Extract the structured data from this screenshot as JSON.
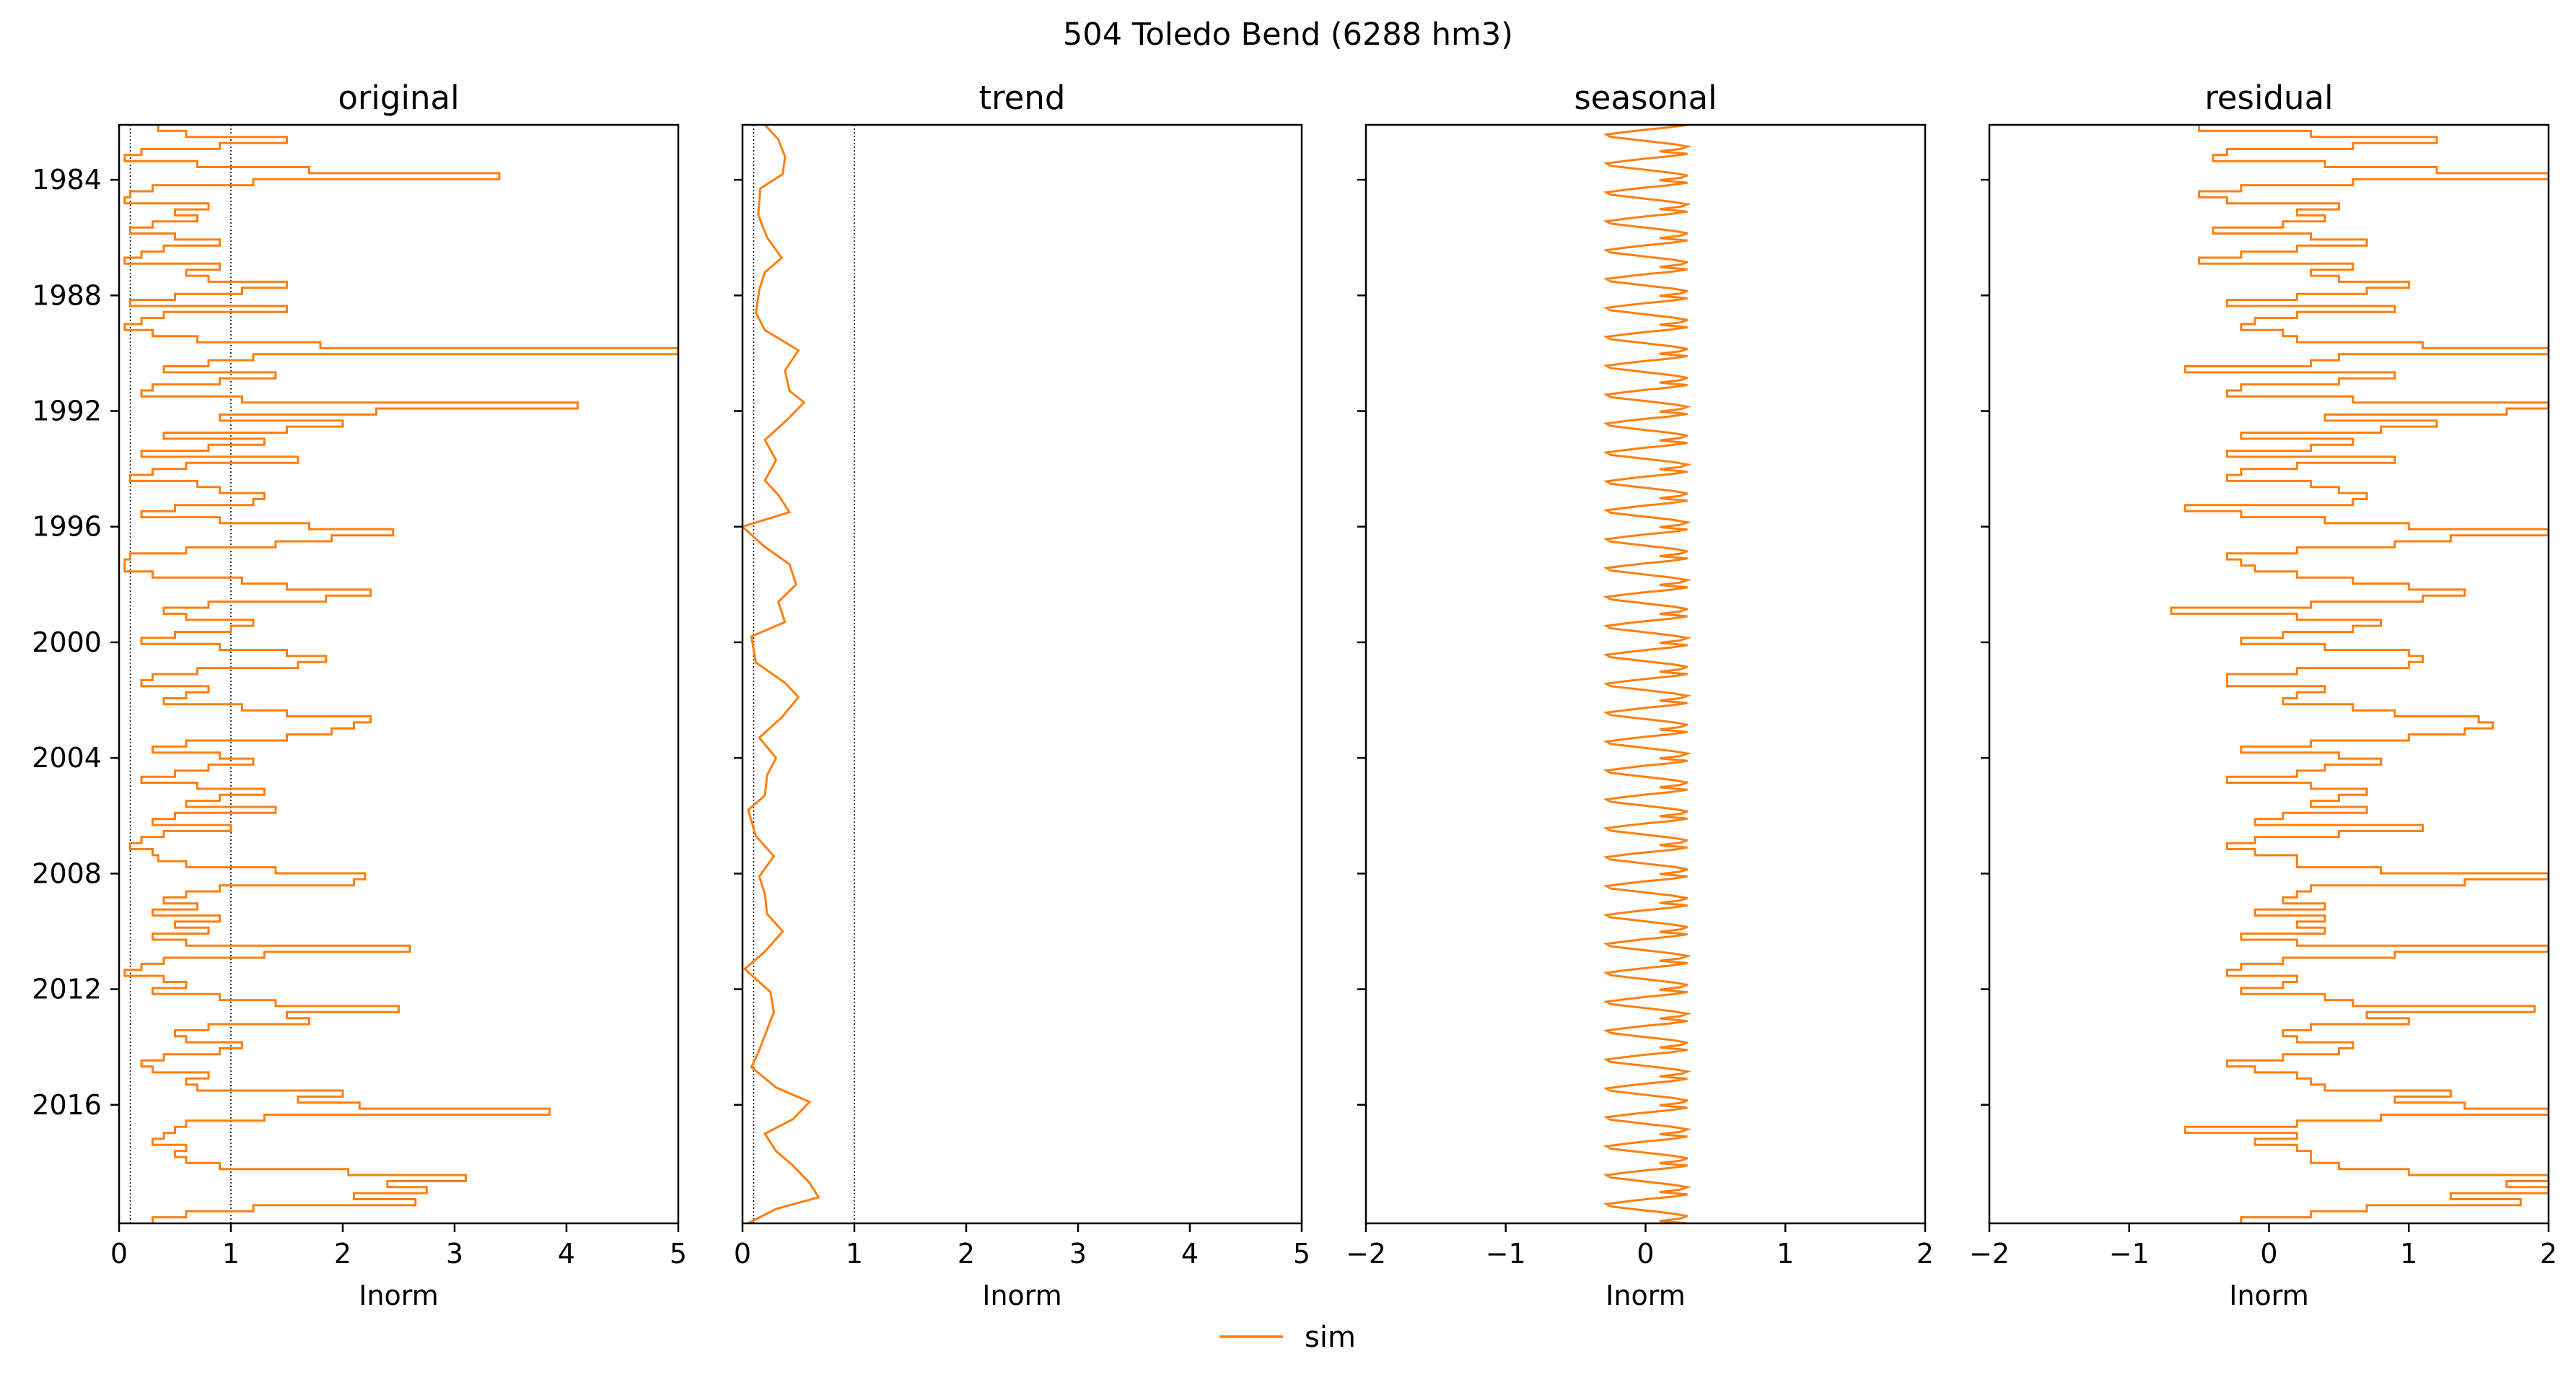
{
  "figure": {
    "suptitle": "504  Toledo Bend (6288 hm3)"
  },
  "colors": {
    "series": "#ff7f0e",
    "axes": "#000000",
    "reference_lines": "#000000",
    "background": "#ffffff"
  },
  "legend": {
    "placement": "bottom-center",
    "entries": [
      {
        "label": "sim",
        "color": "#ff7f0e"
      }
    ]
  },
  "chart_data": [
    {
      "type": "line",
      "orientation": "vertical",
      "title": "original",
      "xlabel": "Inorm",
      "ylabel": "",
      "xlim": [
        0,
        5
      ],
      "xticks": [
        0,
        1,
        2,
        3,
        4,
        5
      ],
      "ylim": [
        1982.1,
        2020.1
      ],
      "yticks": [
        1984,
        1988,
        1992,
        1996,
        2000,
        2004,
        2008,
        2012,
        2016
      ],
      "ytick_labels_shown": true,
      "reference_lines_x": [
        0.1,
        1
      ],
      "grid": false,
      "series": [
        {
          "name": "sim",
          "kind": "monthly",
          "year_start": 1982.1,
          "year_end": 2020.1,
          "values": [
            0.35,
            0.6,
            1.5,
            0.9,
            0.2,
            0.05,
            0.7,
            1.7,
            3.4,
            1.2,
            0.3,
            0.1,
            0.05,
            0.8,
            0.5,
            0.7,
            0.3,
            0.1,
            0.5,
            0.9,
            0.4,
            0.2,
            0.05,
            0.9,
            0.6,
            0.8,
            1.5,
            1.1,
            0.5,
            0.1,
            1.5,
            0.4,
            0.2,
            0.05,
            0.3,
            0.7,
            1.8,
            5.0,
            1.2,
            0.8,
            0.4,
            1.4,
            0.9,
            0.3,
            0.2,
            1.1,
            4.1,
            2.3,
            0.9,
            2.0,
            1.5,
            0.4,
            1.3,
            0.8,
            0.2,
            1.6,
            0.6,
            0.3,
            0.1,
            0.7,
            0.9,
            1.3,
            1.2,
            0.5,
            0.2,
            0.9,
            1.7,
            2.45,
            1.9,
            1.4,
            0.6,
            0.1,
            0.05,
            0.05,
            0.3,
            1.1,
            1.5,
            2.25,
            1.85,
            0.8,
            0.4,
            0.6,
            1.2,
            1.0,
            0.5,
            0.2,
            0.9,
            1.5,
            1.85,
            1.6,
            0.7,
            0.3,
            0.2,
            0.8,
            0.6,
            0.4,
            1.1,
            1.5,
            2.25,
            2.1,
            1.9,
            1.5,
            0.6,
            0.3,
            0.9,
            1.2,
            0.8,
            0.5,
            0.2,
            0.7,
            1.3,
            0.9,
            0.6,
            1.4,
            0.5,
            0.3,
            1.0,
            0.4,
            0.2,
            0.1,
            0.3,
            0.35,
            0.6,
            1.4,
            2.2,
            2.1,
            0.9,
            0.6,
            0.4,
            0.7,
            0.3,
            0.9,
            0.5,
            0.8,
            0.3,
            0.6,
            2.6,
            1.3,
            0.4,
            0.2,
            0.05,
            0.4,
            0.6,
            0.3,
            0.9,
            1.4,
            2.5,
            1.5,
            1.7,
            0.8,
            0.5,
            0.6,
            1.1,
            0.9,
            0.4,
            0.2,
            0.3,
            0.8,
            0.6,
            0.7,
            2.0,
            1.6,
            2.15,
            3.85,
            1.3,
            0.6,
            0.5,
            0.4,
            0.3,
            0.6,
            0.5,
            0.6,
            0.9,
            2.05,
            3.1,
            2.4,
            2.75,
            2.1,
            2.65,
            1.2,
            0.6,
            0.3
          ]
        }
      ]
    },
    {
      "type": "line",
      "orientation": "vertical",
      "title": "trend",
      "xlabel": "Inorm",
      "ylabel": "",
      "xlim": [
        0,
        5
      ],
      "xticks": [
        0,
        1,
        2,
        3,
        4,
        5
      ],
      "ylim": [
        1982.1,
        2020.1
      ],
      "yticks": [
        1984,
        1988,
        1992,
        1996,
        2000,
        2004,
        2008,
        2012,
        2016
      ],
      "ytick_labels_shown": false,
      "reference_lines_x": [
        0.1,
        1
      ],
      "grid": false,
      "series": [
        {
          "name": "sim",
          "kind": "smooth",
          "points": [
            [
              1982.1,
              0.2
            ],
            [
              1982.6,
              0.32
            ],
            [
              1983.2,
              0.38
            ],
            [
              1983.8,
              0.36
            ],
            [
              1984.3,
              0.16
            ],
            [
              1985.2,
              0.14
            ],
            [
              1986.0,
              0.22
            ],
            [
              1986.7,
              0.35
            ],
            [
              1987.2,
              0.2
            ],
            [
              1987.8,
              0.15
            ],
            [
              1988.6,
              0.12
            ],
            [
              1989.2,
              0.2
            ],
            [
              1989.9,
              0.5
            ],
            [
              1990.6,
              0.38
            ],
            [
              1991.3,
              0.42
            ],
            [
              1991.7,
              0.55
            ],
            [
              1992.3,
              0.4
            ],
            [
              1993.0,
              0.2
            ],
            [
              1993.7,
              0.3
            ],
            [
              1994.4,
              0.2
            ],
            [
              1994.9,
              0.32
            ],
            [
              1995.5,
              0.42
            ],
            [
              1996.0,
              0.0
            ],
            [
              1996.7,
              0.2
            ],
            [
              1997.3,
              0.42
            ],
            [
              1998.0,
              0.48
            ],
            [
              1998.6,
              0.32
            ],
            [
              1999.3,
              0.38
            ],
            [
              1999.8,
              0.08
            ],
            [
              2000.7,
              0.12
            ],
            [
              2001.4,
              0.38
            ],
            [
              2001.9,
              0.5
            ],
            [
              2002.6,
              0.35
            ],
            [
              2003.3,
              0.15
            ],
            [
              2004.0,
              0.3
            ],
            [
              2004.6,
              0.22
            ],
            [
              2005.3,
              0.2
            ],
            [
              2005.8,
              0.05
            ],
            [
              2006.7,
              0.12
            ],
            [
              2007.4,
              0.28
            ],
            [
              2008.1,
              0.15
            ],
            [
              2008.7,
              0.2
            ],
            [
              2009.4,
              0.22
            ],
            [
              2010.0,
              0.36
            ],
            [
              2010.7,
              0.2
            ],
            [
              2011.3,
              0.02
            ],
            [
              2012.1,
              0.25
            ],
            [
              2012.8,
              0.28
            ],
            [
              2013.4,
              0.22
            ],
            [
              2014.1,
              0.15
            ],
            [
              2014.7,
              0.08
            ],
            [
              2015.4,
              0.3
            ],
            [
              2015.9,
              0.6
            ],
            [
              2016.5,
              0.45
            ],
            [
              2017.0,
              0.2
            ],
            [
              2017.6,
              0.3
            ],
            [
              2018.1,
              0.45
            ],
            [
              2018.7,
              0.6
            ],
            [
              2019.2,
              0.68
            ],
            [
              2019.6,
              0.3
            ],
            [
              2020.1,
              0.05
            ]
          ]
        }
      ]
    },
    {
      "type": "line",
      "orientation": "vertical",
      "title": "seasonal",
      "xlabel": "Inorm",
      "ylabel": "",
      "xlim": [
        -2,
        2
      ],
      "xticks": [
        -2,
        -1,
        0,
        1,
        2
      ],
      "ylim": [
        1982.1,
        2020.1
      ],
      "yticks": [
        1984,
        1988,
        1992,
        1996,
        2000,
        2004,
        2008,
        2012,
        2016
      ],
      "ytick_labels_shown": false,
      "reference_lines_x": [],
      "grid": false,
      "series": [
        {
          "name": "sim",
          "kind": "seasonal",
          "year_start": 1982.1,
          "year_end": 2020.1,
          "monthly_pattern": [
            0.3,
            0.18,
            0.0,
            -0.15,
            -0.28,
            -0.25,
            -0.1,
            0.05,
            0.2,
            0.3,
            0.25,
            0.1
          ]
        }
      ]
    },
    {
      "type": "line",
      "orientation": "vertical",
      "title": "residual",
      "xlabel": "Inorm",
      "ylabel": "",
      "xlim": [
        -2,
        2
      ],
      "xticks": [
        -2,
        -1,
        0,
        1,
        2
      ],
      "ylim": [
        1982.1,
        2020.1
      ],
      "yticks": [
        1984,
        1988,
        1992,
        1996,
        2000,
        2004,
        2008,
        2012,
        2016
      ],
      "ytick_labels_shown": false,
      "reference_lines_x": [],
      "grid": false,
      "series": [
        {
          "name": "sim",
          "kind": "monthly",
          "year_start": 1982.1,
          "year_end": 2020.1,
          "values": [
            -0.5,
            0.3,
            1.2,
            0.6,
            -0.3,
            -0.4,
            0.4,
            1.2,
            2.0,
            0.6,
            -0.2,
            -0.5,
            -0.3,
            0.5,
            0.2,
            0.4,
            0.1,
            -0.4,
            0.3,
            0.7,
            0.2,
            -0.2,
            -0.5,
            0.6,
            0.3,
            0.5,
            1.0,
            0.7,
            0.2,
            -0.3,
            0.9,
            0.2,
            -0.1,
            -0.2,
            0.1,
            0.2,
            1.1,
            2.0,
            0.5,
            0.3,
            -0.6,
            0.9,
            0.5,
            -0.2,
            -0.3,
            0.6,
            2.0,
            1.7,
            0.4,
            1.2,
            0.8,
            -0.2,
            0.6,
            0.3,
            -0.3,
            0.9,
            0.2,
            -0.2,
            -0.3,
            0.3,
            0.5,
            0.7,
            0.6,
            -0.6,
            -0.2,
            0.4,
            1.0,
            2.0,
            1.3,
            0.9,
            0.2,
            -0.3,
            -0.2,
            -0.1,
            0.2,
            0.6,
            1.0,
            1.4,
            1.1,
            0.3,
            -0.7,
            0.2,
            0.8,
            0.6,
            0.1,
            -0.2,
            0.4,
            1.0,
            1.1,
            1.0,
            0.2,
            -0.3,
            -0.3,
            0.4,
            0.2,
            0.1,
            0.6,
            0.9,
            1.5,
            1.6,
            1.4,
            1.0,
            0.3,
            -0.2,
            0.5,
            0.8,
            0.4,
            0.2,
            -0.3,
            0.3,
            0.7,
            0.5,
            0.3,
            0.7,
            0.1,
            -0.1,
            1.1,
            0.5,
            -0.1,
            -0.3,
            -0.1,
            0.2,
            0.2,
            0.8,
            2.0,
            1.4,
            0.3,
            0.2,
            0.1,
            0.4,
            -0.1,
            0.4,
            0.2,
            0.4,
            -0.2,
            0.2,
            2.0,
            0.9,
            0.1,
            -0.2,
            -0.3,
            0.2,
            0.1,
            -0.2,
            0.4,
            0.6,
            1.9,
            0.7,
            1.0,
            0.3,
            0.1,
            0.2,
            0.6,
            0.5,
            0.1,
            -0.3,
            -0.1,
            0.2,
            0.3,
            0.4,
            1.3,
            0.9,
            1.4,
            2.0,
            0.8,
            0.2,
            -0.6,
            0.2,
            -0.1,
            0.2,
            0.3,
            0.3,
            0.5,
            1.0,
            2.0,
            1.7,
            2.0,
            1.3,
            1.8,
            0.7,
            0.3,
            -0.2
          ]
        }
      ]
    }
  ]
}
